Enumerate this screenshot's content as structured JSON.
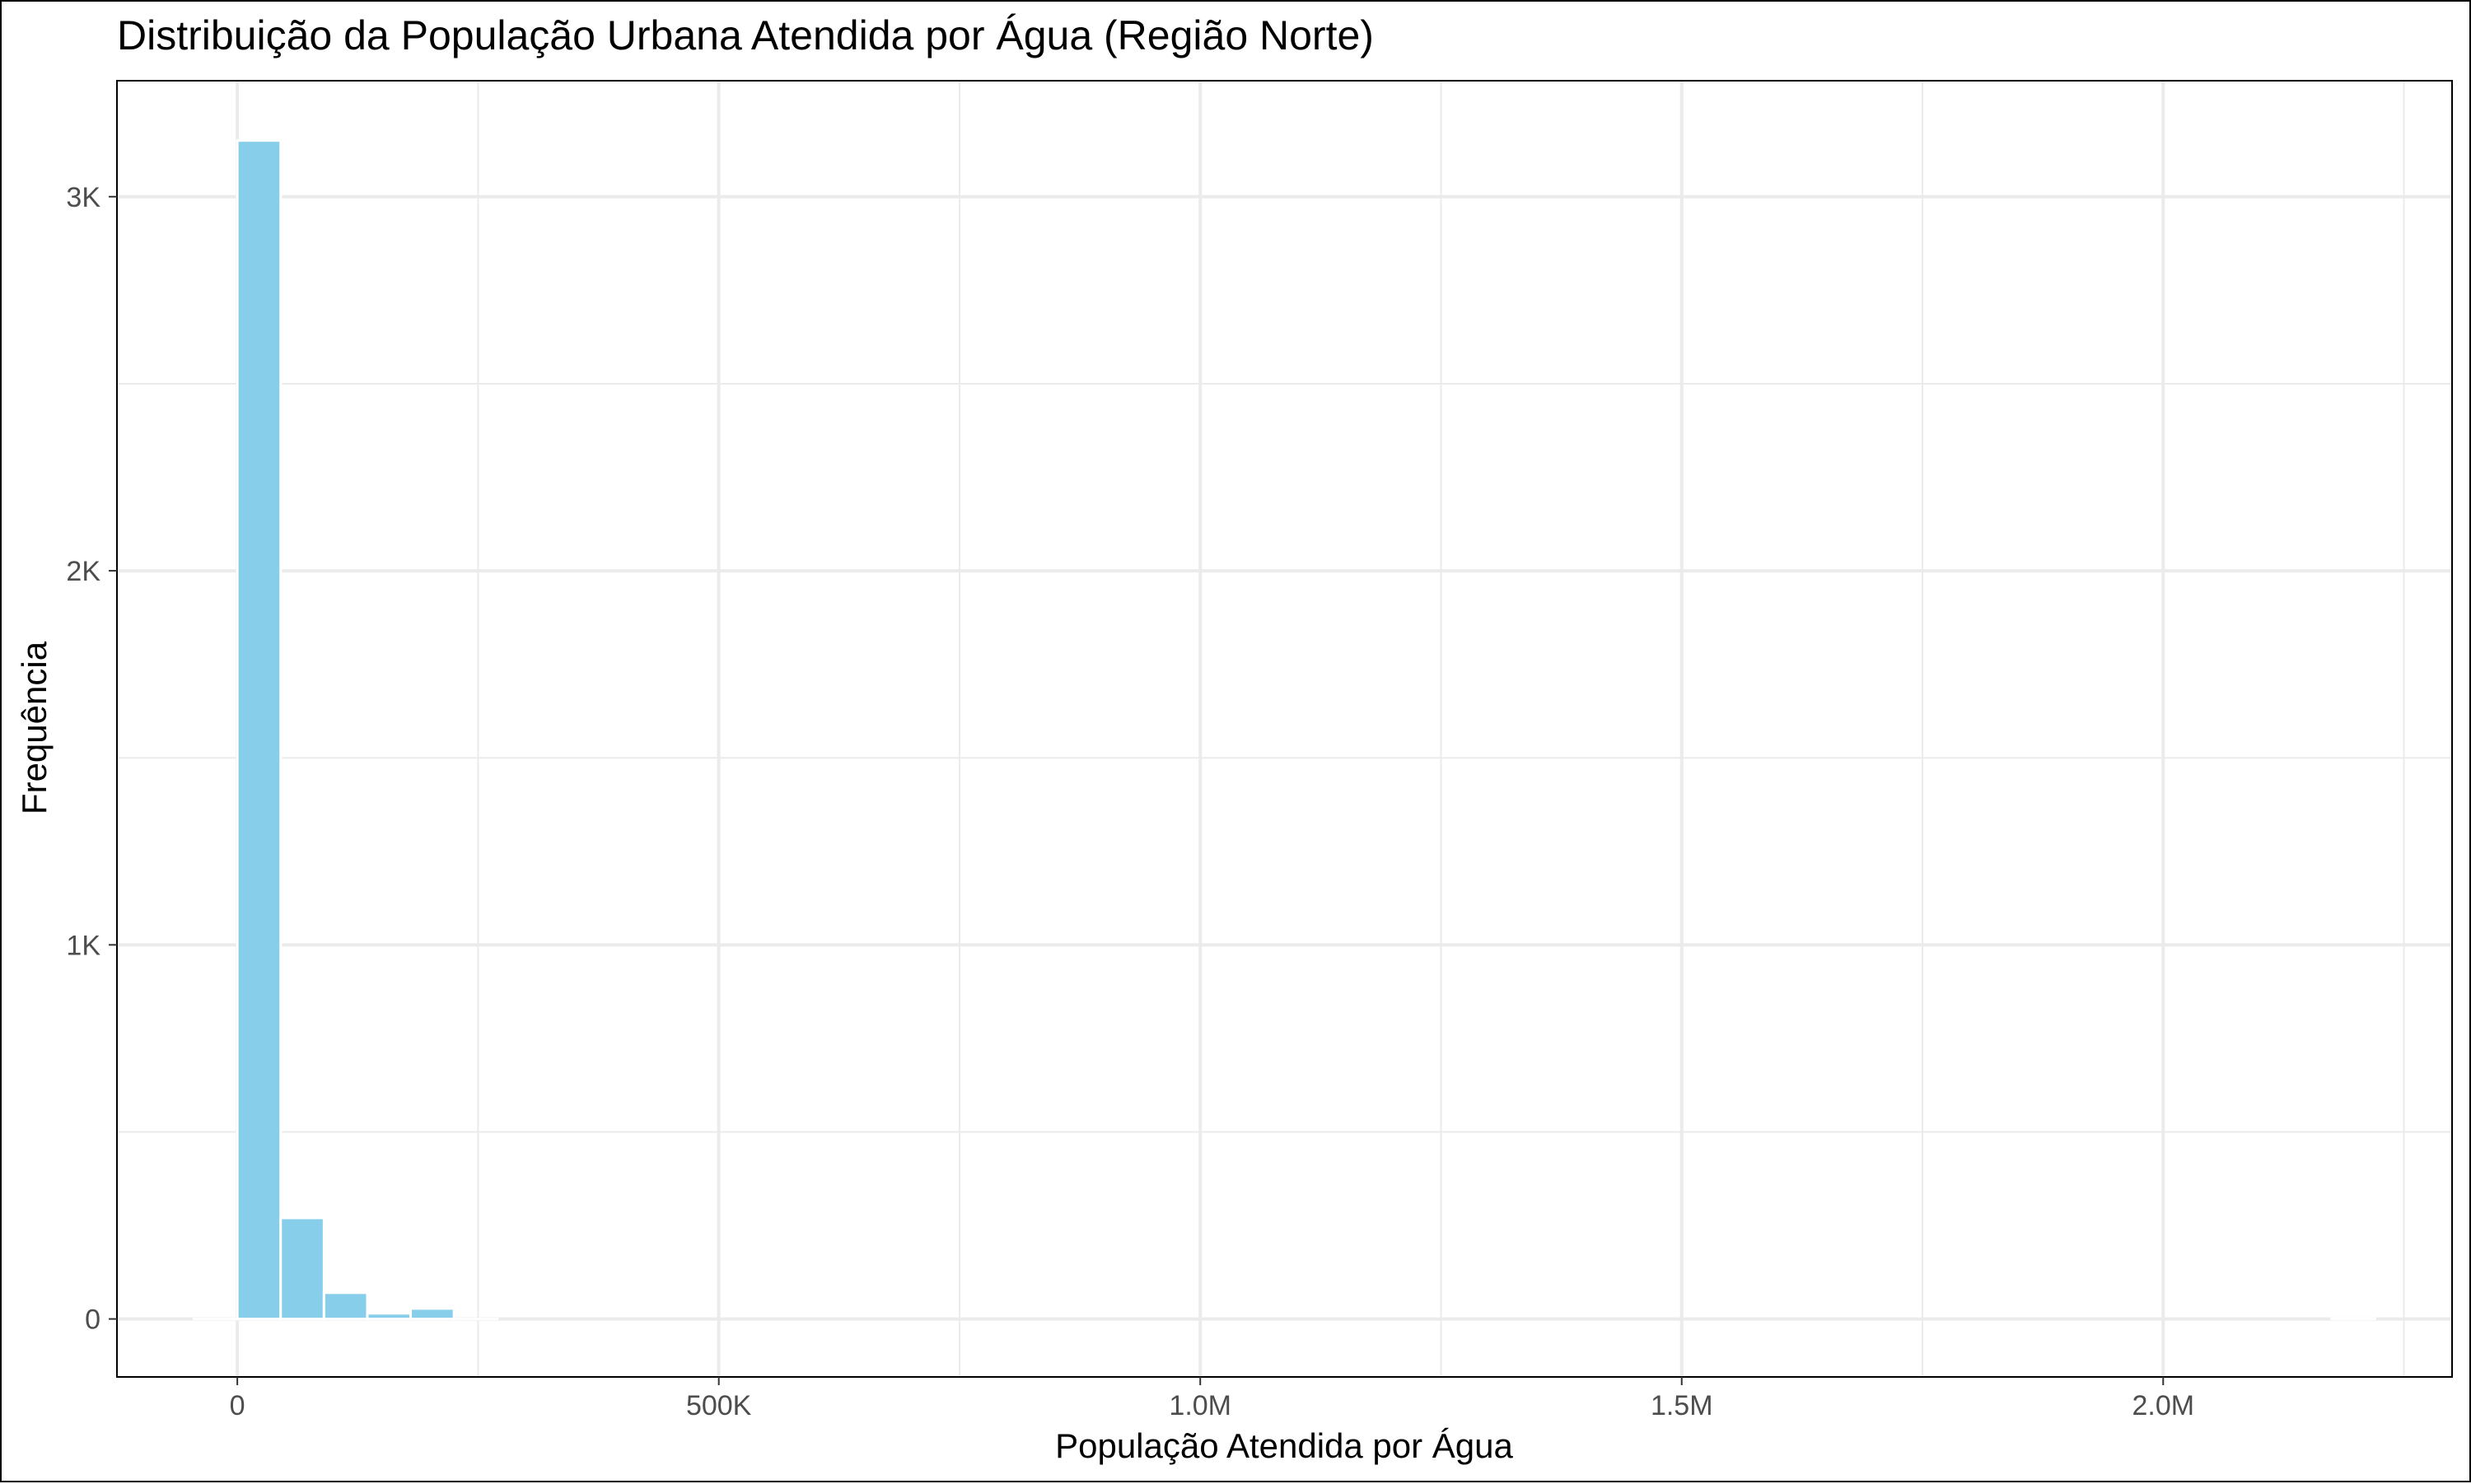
{
  "chart_data": {
    "type": "bar",
    "title": "Distribuição da População Urbana Atendida por Água (Região Norte)",
    "xlabel": "População Atendida por Água",
    "ylabel": "Frequência",
    "xlim": [
      -125000,
      2300000
    ],
    "ylim": [
      -155,
      3310
    ],
    "x_ticks": [
      {
        "value": 0,
        "label": "0"
      },
      {
        "value": 500000,
        "label": "500K"
      },
      {
        "value": 1000000,
        "label": "1.0M"
      },
      {
        "value": 1500000,
        "label": "1.5M"
      },
      {
        "value": 2000000,
        "label": "2.0M"
      }
    ],
    "y_ticks": [
      {
        "value": 0,
        "label": "0"
      },
      {
        "value": 1000,
        "label": "1K"
      },
      {
        "value": 2000,
        "label": "2K"
      },
      {
        "value": 3000,
        "label": "3K"
      }
    ],
    "x_minor_gridlines": [
      250000,
      750000,
      1250000,
      1750000,
      2250000
    ],
    "y_minor_gridlines": [
      500,
      1500,
      2500
    ],
    "bin_width": 45000,
    "bins": [
      {
        "start": -45000,
        "end": 0,
        "count": 0
      },
      {
        "start": 0,
        "end": 45000,
        "count": 3150
      },
      {
        "start": 45000,
        "end": 90000,
        "count": 270
      },
      {
        "start": 90000,
        "end": 135000,
        "count": 70
      },
      {
        "start": 135000,
        "end": 180000,
        "count": 15
      },
      {
        "start": 180000,
        "end": 225000,
        "count": 28
      },
      {
        "start": 225000,
        "end": 270000,
        "count": 0
      },
      {
        "start": 2175000,
        "end": 2220000,
        "count": 1
      }
    ],
    "grid": true,
    "legend": "none",
    "colors": {
      "bar_fill": "#87CEEB",
      "bar_stroke": "#ffffff",
      "grid": "#EBEBEB",
      "panel_border": "#000000",
      "tick_label": "#4D4D4D",
      "text": "#000000"
    }
  }
}
